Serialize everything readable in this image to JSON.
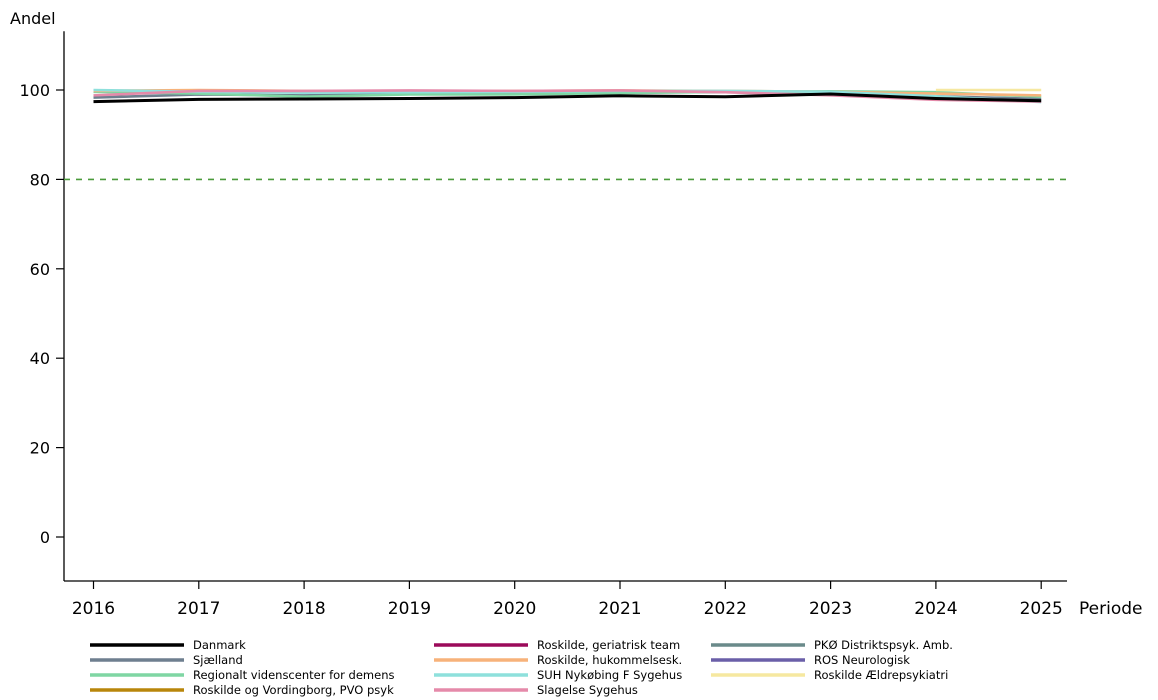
{
  "chart_data": {
    "type": "line",
    "ylabel": "Andel",
    "xlabel": "Periode",
    "x": [
      "2016",
      "2017",
      "2018",
      "2019",
      "2020",
      "2021",
      "2022",
      "2023",
      "2024",
      "2025"
    ],
    "ylim": [
      -10,
      110
    ],
    "yticks": [
      0,
      20,
      40,
      60,
      80,
      100
    ],
    "grid": false,
    "legend_position": "bottom",
    "reference_line": {
      "y": 80,
      "color": "#4a9a3a",
      "style": "dashed"
    },
    "series": [
      {
        "name": "Danmark",
        "color": "#000000",
        "values": [
          97.4,
          97.9,
          98.0,
          98.1,
          98.3,
          98.7,
          98.5,
          99.1,
          98.1,
          97.6
        ]
      },
      {
        "name": "Sjælland",
        "color": "#6e7f8f",
        "values": [
          98.3,
          99.0,
          98.8,
          99.2,
          99.2,
          99.5,
          99.5,
          99.3,
          98.6,
          98.0
        ]
      },
      {
        "name": "Regionalt videnscenter for demens",
        "color": "#7fd6a3",
        "values": [
          99.6,
          99.2,
          98.5,
          99.0,
          99.0,
          99.3,
          99.6,
          99.7,
          99.5,
          98.5
        ]
      },
      {
        "name": "Roskilde og Vordingborg, PVO psyk",
        "color": "#b8860b",
        "values": [
          null,
          null,
          null,
          null,
          null,
          null,
          null,
          null,
          null,
          null
        ]
      },
      {
        "name": "Roskilde, geriatrisk team",
        "color": "#9b0a5a",
        "values": [
          null,
          null,
          null,
          null,
          null,
          null,
          null,
          null,
          null,
          null
        ]
      },
      {
        "name": "Roskilde, hukommelsesk.",
        "color": "#f7b27a",
        "values": [
          99.8,
          100.0,
          99.8,
          99.7,
          99.8,
          99.9,
          99.8,
          99.6,
          99.2,
          98.8
        ]
      },
      {
        "name": "SUH Nykøbing F Sygehus",
        "color": "#8ee0dc",
        "values": [
          100.0,
          99.6,
          99.4,
          99.5,
          99.6,
          99.8,
          99.8,
          99.6,
          98.6,
          97.3
        ]
      },
      {
        "name": "Slagelse Sygehus",
        "color": "#e58aaa",
        "values": [
          98.8,
          99.8,
          99.8,
          99.9,
          99.8,
          99.9,
          99.5,
          98.8,
          97.8,
          97.4
        ]
      },
      {
        "name": "PKØ Distriktspsyk. Amb.",
        "color": "#6a8a8a",
        "values": [
          null,
          null,
          null,
          null,
          null,
          null,
          null,
          null,
          null,
          null
        ]
      },
      {
        "name": "ROS Neurologisk",
        "color": "#6a5fa8",
        "values": [
          null,
          null,
          null,
          null,
          null,
          null,
          null,
          null,
          null,
          null
        ]
      },
      {
        "name": "Roskilde Ældrepsykiatri",
        "color": "#f6e8a0",
        "values": [
          null,
          null,
          null,
          null,
          null,
          null,
          null,
          null,
          100.0,
          100.0
        ]
      }
    ]
  }
}
